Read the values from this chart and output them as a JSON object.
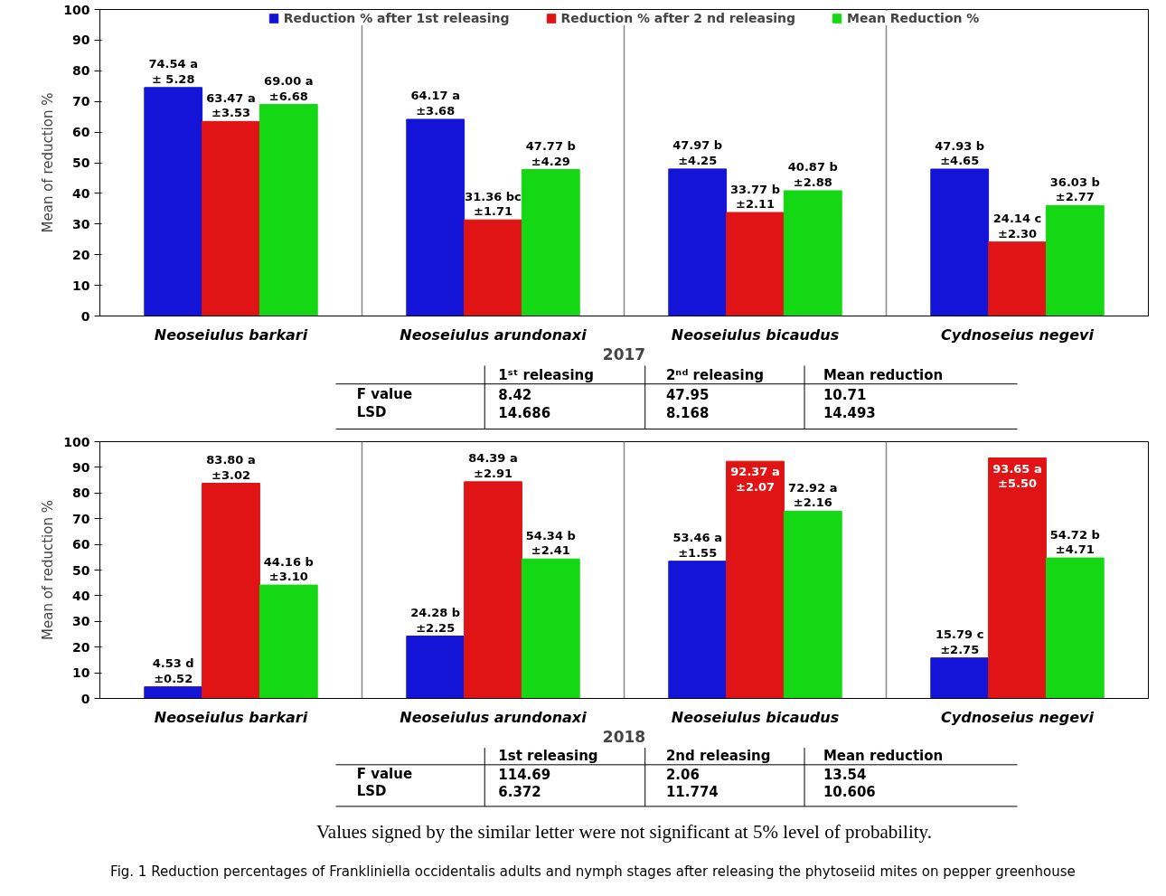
{
  "chart_data": [
    {
      "type": "bar",
      "xlabel": "2017",
      "ylabel": "Mean of reduction %",
      "categories": [
        "Neoseiulus barkari",
        "Neoseiulus arundonaxi",
        "Neoseiulus bicaudus",
        "Cydnoseius negevi"
      ],
      "series": [
        {
          "name": "Reduction % after 1st releasing",
          "color": "#1414d8",
          "values": [
            74.54,
            64.17,
            47.97,
            47.93
          ],
          "value_labels": [
            "74.54 a\n± 5.28",
            "64.17 a\n±3.68",
            "47.97 b\n±4.25",
            "47.93 b\n±4.65"
          ]
        },
        {
          "name": "Reduction % after 2 nd releasing",
          "color": "#e01414",
          "values": [
            63.47,
            31.36,
            33.77,
            24.14
          ],
          "value_labels": [
            "63.47 a\n±3.53",
            "31.36 bc\n±1.71",
            "33.77 b\n±2.11",
            "24.14 c\n±2.30"
          ]
        },
        {
          "name": "Mean Reduction %",
          "color": "#14d814",
          "values": [
            69.0,
            47.77,
            40.87,
            36.03
          ],
          "value_labels": [
            "69.00 a\n±6.68",
            "47.77 b\n±4.29",
            "40.87 b\n±2.88",
            "36.03 b\n±2.77"
          ]
        }
      ],
      "ylim": [
        0,
        100
      ],
      "yticks": [
        0,
        10,
        20,
        30,
        40,
        50,
        60,
        70,
        80,
        90,
        100
      ],
      "grid": false,
      "legend": "top",
      "annotations": [
        "1ˢᵗ releasing",
        "2ⁿᵈ releasing",
        "Mean reduction",
        "F value",
        "8.42",
        "47.95",
        "10.71",
        "LSD",
        "14.686",
        "8.168",
        "14.493"
      ]
    },
    {
      "type": "bar",
      "xlabel": "2018",
      "ylabel": "Mean of reduction %",
      "categories": [
        "Neoseiulus barkari",
        "Neoseiulus arundonaxi",
        "Neoseiulus bicaudus",
        "Cydnoseius negevi"
      ],
      "series": [
        {
          "color": "#1414d8",
          "values": [
            4.53,
            24.28,
            53.46,
            15.79
          ],
          "value_labels": [
            "4.53 d\n±0.52",
            "24.28 b\n±2.25",
            "53.46 a\n±1.55",
            "15.79 c\n±2.75"
          ]
        },
        {
          "color": "#e01414",
          "values": [
            83.8,
            84.39,
            92.37,
            93.65
          ],
          "value_labels": [
            "83.80 a\n±3.02",
            "84.39 a\n±2.91",
            "92.37 a\n±2.07",
            "93.65 a\n±5.50"
          ]
        },
        {
          "color": "#14d814",
          "values": [
            44.16,
            54.34,
            72.92,
            54.72
          ],
          "value_labels": [
            "44.16 b\n±3.10",
            "54.34 b\n±2.41",
            "72.92 a\n±2.16",
            "54.72 b\n±4.71"
          ]
        }
      ],
      "ylim": [
        0,
        100
      ],
      "yticks": [
        0,
        10,
        20,
        30,
        40,
        50,
        60,
        70,
        80,
        90,
        100
      ],
      "grid": false,
      "legend": false,
      "annotations": [
        "1st releasing",
        "2nd releasing",
        "Mean reduction",
        "F value",
        "114.69",
        "2.06",
        "13.54",
        "LSD",
        "6.372",
        "11.774",
        "10.606"
      ]
    },
    {
      "type": "other",
      "annotations": [
        "Values signed by the similar letter were not significant at 5% level of probability.",
        "Fig. 1 Reduction percentages of Frankliniella occidentalis adults and nymph stages after releasing the phytoseiid mites on pepper greenhouse"
      ]
    }
  ]
}
